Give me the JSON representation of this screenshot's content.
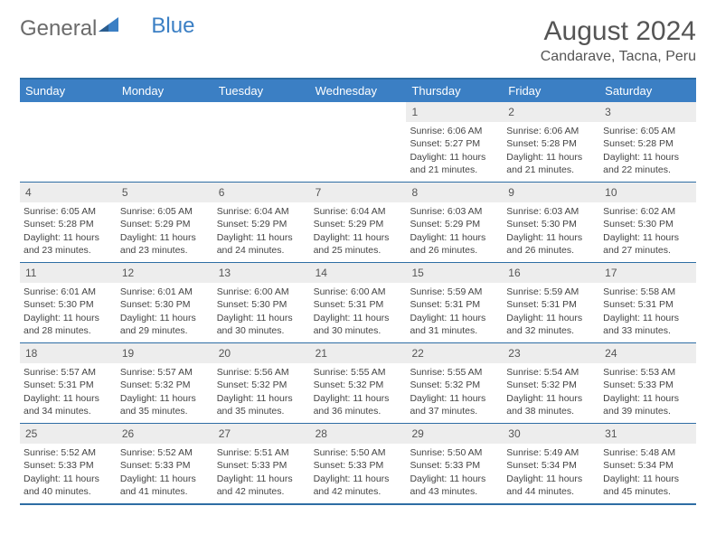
{
  "logo": {
    "text1": "General",
    "text2": "Blue"
  },
  "title": "August 2024",
  "location": "Candarave, Tacna, Peru",
  "colors": {
    "header_bg": "#3b7fc4",
    "header_text": "#ffffff",
    "border": "#2e6da4",
    "daynum_bg": "#ededed",
    "text": "#444444",
    "logo_general": "#6b6b6b",
    "logo_blue": "#3b7fc4",
    "background": "#ffffff"
  },
  "dayHeaders": [
    "Sunday",
    "Monday",
    "Tuesday",
    "Wednesday",
    "Thursday",
    "Friday",
    "Saturday"
  ],
  "weeks": [
    [
      {
        "day": "",
        "sunrise": "",
        "sunset": "",
        "daylight": ""
      },
      {
        "day": "",
        "sunrise": "",
        "sunset": "",
        "daylight": ""
      },
      {
        "day": "",
        "sunrise": "",
        "sunset": "",
        "daylight": ""
      },
      {
        "day": "",
        "sunrise": "",
        "sunset": "",
        "daylight": ""
      },
      {
        "day": "1",
        "sunrise": "Sunrise: 6:06 AM",
        "sunset": "Sunset: 5:27 PM",
        "daylight": "Daylight: 11 hours and 21 minutes."
      },
      {
        "day": "2",
        "sunrise": "Sunrise: 6:06 AM",
        "sunset": "Sunset: 5:28 PM",
        "daylight": "Daylight: 11 hours and 21 minutes."
      },
      {
        "day": "3",
        "sunrise": "Sunrise: 6:05 AM",
        "sunset": "Sunset: 5:28 PM",
        "daylight": "Daylight: 11 hours and 22 minutes."
      }
    ],
    [
      {
        "day": "4",
        "sunrise": "Sunrise: 6:05 AM",
        "sunset": "Sunset: 5:28 PM",
        "daylight": "Daylight: 11 hours and 23 minutes."
      },
      {
        "day": "5",
        "sunrise": "Sunrise: 6:05 AM",
        "sunset": "Sunset: 5:29 PM",
        "daylight": "Daylight: 11 hours and 23 minutes."
      },
      {
        "day": "6",
        "sunrise": "Sunrise: 6:04 AM",
        "sunset": "Sunset: 5:29 PM",
        "daylight": "Daylight: 11 hours and 24 minutes."
      },
      {
        "day": "7",
        "sunrise": "Sunrise: 6:04 AM",
        "sunset": "Sunset: 5:29 PM",
        "daylight": "Daylight: 11 hours and 25 minutes."
      },
      {
        "day": "8",
        "sunrise": "Sunrise: 6:03 AM",
        "sunset": "Sunset: 5:29 PM",
        "daylight": "Daylight: 11 hours and 26 minutes."
      },
      {
        "day": "9",
        "sunrise": "Sunrise: 6:03 AM",
        "sunset": "Sunset: 5:30 PM",
        "daylight": "Daylight: 11 hours and 26 minutes."
      },
      {
        "day": "10",
        "sunrise": "Sunrise: 6:02 AM",
        "sunset": "Sunset: 5:30 PM",
        "daylight": "Daylight: 11 hours and 27 minutes."
      }
    ],
    [
      {
        "day": "11",
        "sunrise": "Sunrise: 6:01 AM",
        "sunset": "Sunset: 5:30 PM",
        "daylight": "Daylight: 11 hours and 28 minutes."
      },
      {
        "day": "12",
        "sunrise": "Sunrise: 6:01 AM",
        "sunset": "Sunset: 5:30 PM",
        "daylight": "Daylight: 11 hours and 29 minutes."
      },
      {
        "day": "13",
        "sunrise": "Sunrise: 6:00 AM",
        "sunset": "Sunset: 5:30 PM",
        "daylight": "Daylight: 11 hours and 30 minutes."
      },
      {
        "day": "14",
        "sunrise": "Sunrise: 6:00 AM",
        "sunset": "Sunset: 5:31 PM",
        "daylight": "Daylight: 11 hours and 30 minutes."
      },
      {
        "day": "15",
        "sunrise": "Sunrise: 5:59 AM",
        "sunset": "Sunset: 5:31 PM",
        "daylight": "Daylight: 11 hours and 31 minutes."
      },
      {
        "day": "16",
        "sunrise": "Sunrise: 5:59 AM",
        "sunset": "Sunset: 5:31 PM",
        "daylight": "Daylight: 11 hours and 32 minutes."
      },
      {
        "day": "17",
        "sunrise": "Sunrise: 5:58 AM",
        "sunset": "Sunset: 5:31 PM",
        "daylight": "Daylight: 11 hours and 33 minutes."
      }
    ],
    [
      {
        "day": "18",
        "sunrise": "Sunrise: 5:57 AM",
        "sunset": "Sunset: 5:31 PM",
        "daylight": "Daylight: 11 hours and 34 minutes."
      },
      {
        "day": "19",
        "sunrise": "Sunrise: 5:57 AM",
        "sunset": "Sunset: 5:32 PM",
        "daylight": "Daylight: 11 hours and 35 minutes."
      },
      {
        "day": "20",
        "sunrise": "Sunrise: 5:56 AM",
        "sunset": "Sunset: 5:32 PM",
        "daylight": "Daylight: 11 hours and 35 minutes."
      },
      {
        "day": "21",
        "sunrise": "Sunrise: 5:55 AM",
        "sunset": "Sunset: 5:32 PM",
        "daylight": "Daylight: 11 hours and 36 minutes."
      },
      {
        "day": "22",
        "sunrise": "Sunrise: 5:55 AM",
        "sunset": "Sunset: 5:32 PM",
        "daylight": "Daylight: 11 hours and 37 minutes."
      },
      {
        "day": "23",
        "sunrise": "Sunrise: 5:54 AM",
        "sunset": "Sunset: 5:32 PM",
        "daylight": "Daylight: 11 hours and 38 minutes."
      },
      {
        "day": "24",
        "sunrise": "Sunrise: 5:53 AM",
        "sunset": "Sunset: 5:33 PM",
        "daylight": "Daylight: 11 hours and 39 minutes."
      }
    ],
    [
      {
        "day": "25",
        "sunrise": "Sunrise: 5:52 AM",
        "sunset": "Sunset: 5:33 PM",
        "daylight": "Daylight: 11 hours and 40 minutes."
      },
      {
        "day": "26",
        "sunrise": "Sunrise: 5:52 AM",
        "sunset": "Sunset: 5:33 PM",
        "daylight": "Daylight: 11 hours and 41 minutes."
      },
      {
        "day": "27",
        "sunrise": "Sunrise: 5:51 AM",
        "sunset": "Sunset: 5:33 PM",
        "daylight": "Daylight: 11 hours and 42 minutes."
      },
      {
        "day": "28",
        "sunrise": "Sunrise: 5:50 AM",
        "sunset": "Sunset: 5:33 PM",
        "daylight": "Daylight: 11 hours and 42 minutes."
      },
      {
        "day": "29",
        "sunrise": "Sunrise: 5:50 AM",
        "sunset": "Sunset: 5:33 PM",
        "daylight": "Daylight: 11 hours and 43 minutes."
      },
      {
        "day": "30",
        "sunrise": "Sunrise: 5:49 AM",
        "sunset": "Sunset: 5:34 PM",
        "daylight": "Daylight: 11 hours and 44 minutes."
      },
      {
        "day": "31",
        "sunrise": "Sunrise: 5:48 AM",
        "sunset": "Sunset: 5:34 PM",
        "daylight": "Daylight: 11 hours and 45 minutes."
      }
    ]
  ]
}
